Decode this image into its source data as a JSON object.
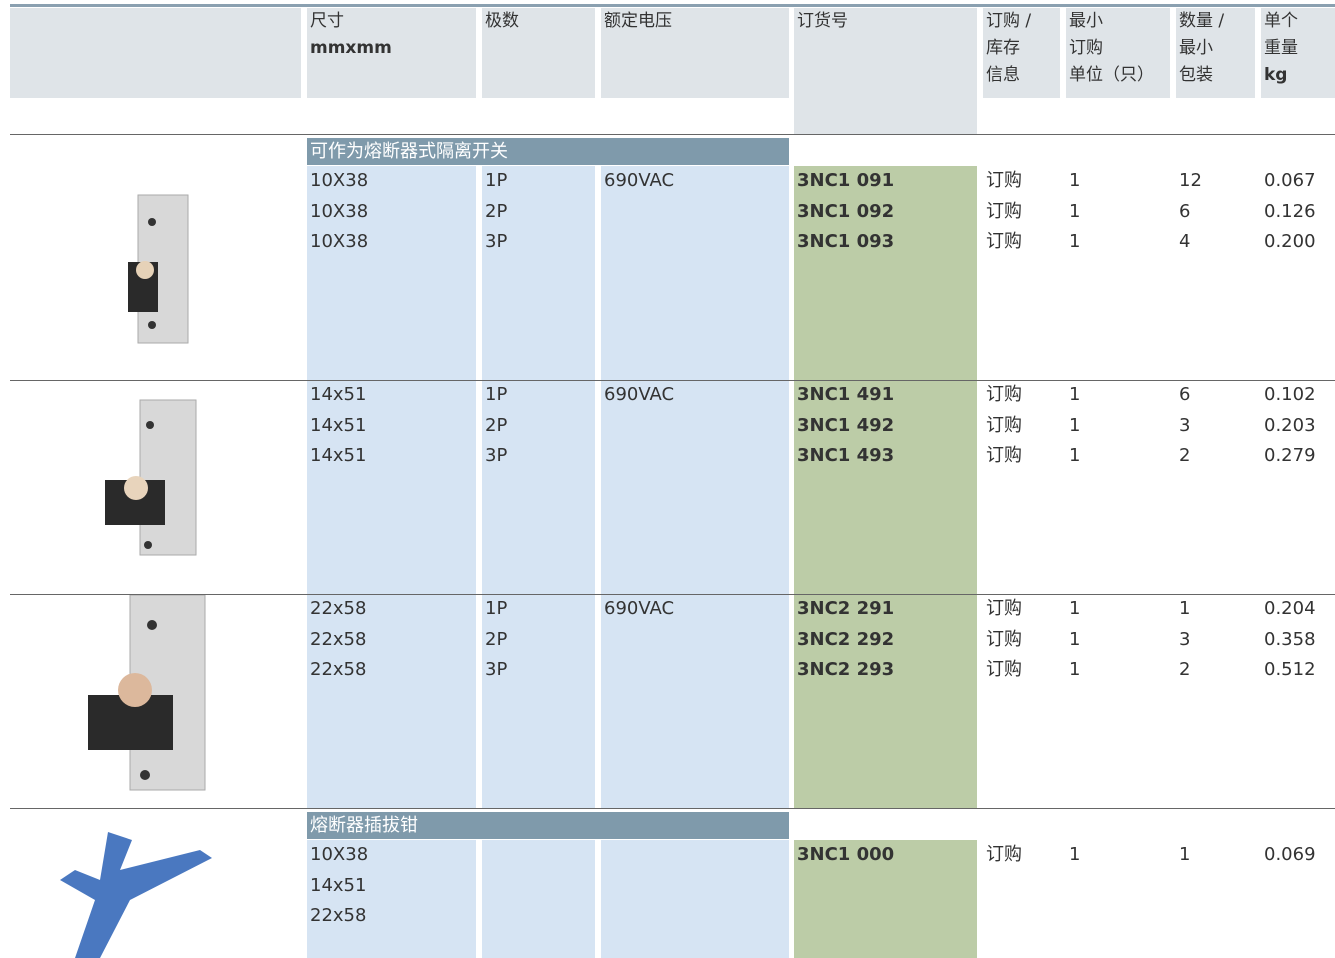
{
  "header": {
    "columns": [
      [
        "尺寸",
        "mmxmm"
      ],
      [
        "极数"
      ],
      [
        "额定电压"
      ],
      [
        "订货号"
      ],
      [
        "订购 /",
        "库存",
        "信息"
      ],
      [
        "最小",
        "订购",
        "单位（只）"
      ],
      [
        "数量 /",
        "最小",
        "包装"
      ],
      [
        "单个",
        "重量",
        "kg"
      ]
    ]
  },
  "sections": [
    {
      "title": "可作为熔断器式隔离开关",
      "groups": [
        {
          "rows": [
            {
              "size": "10X38",
              "poles": "1P",
              "voltage": "690VAC",
              "order_no": "3NC1 091",
              "info": "订购",
              "min_order": "1",
              "pack": "12",
              "weight": "0.067"
            },
            {
              "size": "10X38",
              "poles": "2P",
              "order_no": "3NC1 092",
              "info": "订购",
              "min_order": "1",
              "pack": "6",
              "weight": "0.126"
            },
            {
              "size": "10X38",
              "poles": "3P",
              "order_no": "3NC1 093",
              "info": "订购",
              "min_order": "1",
              "pack": "4",
              "weight": "0.200"
            }
          ]
        },
        {
          "rows": [
            {
              "size": "14x51",
              "poles": "1P",
              "voltage": "690VAC",
              "order_no": "3NC1 491",
              "info": "订购",
              "min_order": "1",
              "pack": "6",
              "weight": "0.102"
            },
            {
              "size": "14x51",
              "poles": "2P",
              "order_no": "3NC1 492",
              "info": "订购",
              "min_order": "1",
              "pack": "3",
              "weight": "0.203"
            },
            {
              "size": "14x51",
              "poles": "3P",
              "order_no": "3NC1 493",
              "info": "订购",
              "min_order": "1",
              "pack": "2",
              "weight": "0.279"
            }
          ]
        },
        {
          "rows": [
            {
              "size": "22x58",
              "poles": "1P",
              "voltage": "690VAC",
              "order_no": "3NC2 291",
              "info": "订购",
              "min_order": "1",
              "pack": "1",
              "weight": "0.204"
            },
            {
              "size": "22x58",
              "poles": "2P",
              "order_no": "3NC2 292",
              "info": "订购",
              "min_order": "1",
              "pack": "3",
              "weight": "0.358"
            },
            {
              "size": "22x58",
              "poles": "3P",
              "order_no": "3NC2 293",
              "info": "订购",
              "min_order": "1",
              "pack": "2",
              "weight": "0.512"
            }
          ]
        }
      ]
    },
    {
      "title": "熔断器插拔钳",
      "groups": [
        {
          "rows": [
            {
              "size": "10X38",
              "order_no": "3NC1 000",
              "info": "订购",
              "min_order": "1",
              "pack": "1",
              "weight": "0.069"
            },
            {
              "size": "14x51"
            },
            {
              "size": "22x58"
            }
          ]
        }
      ]
    }
  ]
}
